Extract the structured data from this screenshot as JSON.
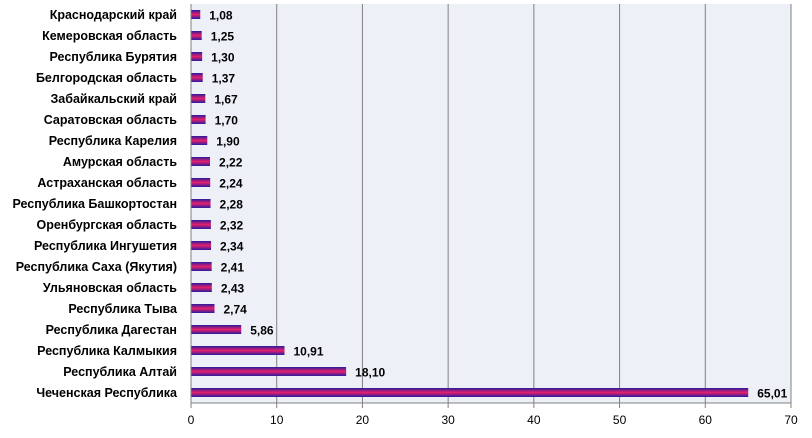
{
  "chart_data": {
    "type": "bar",
    "orientation": "horizontal",
    "title": "",
    "xlabel": "",
    "ylabel": "",
    "xlim": [
      0,
      70
    ],
    "x_ticks": [
      0,
      10,
      20,
      30,
      40,
      50,
      60,
      70
    ],
    "grid": "vertical",
    "legend": "none",
    "categories": [
      "Краснодарский край",
      "Кемеровская область",
      "Республика Бурятия",
      "Белгородская область",
      "Забайкальский край",
      "Саратовская область",
      "Республика Карелия",
      "Амурская область",
      "Астраханская область",
      "Республика Башкортостан",
      "Оренбургская область",
      "Республика Ингушетия",
      "Республика Саха (Якутия)",
      "Ульяновская область",
      "Республика Тыва",
      "Республика Дагестан",
      "Республика Калмыкия",
      "Республика Алтай",
      "Чеченская Республика"
    ],
    "values": [
      1.08,
      1.25,
      1.3,
      1.37,
      1.67,
      1.7,
      1.9,
      2.22,
      2.24,
      2.28,
      2.32,
      2.34,
      2.41,
      2.43,
      2.74,
      5.86,
      10.91,
      18.1,
      65.01
    ],
    "value_labels": [
      "1,08",
      "1,25",
      "1,30",
      "1,37",
      "1,67",
      "1,70",
      "1,90",
      "2,22",
      "2,24",
      "2,28",
      "2,32",
      "2,34",
      "2,41",
      "2,43",
      "2,74",
      "5,86",
      "10,91",
      "18,10",
      "65,01"
    ],
    "colors": {
      "plot_background": "#eef0f8",
      "gridline": "#808080",
      "bar_top": "#2a1aa0",
      "bar_middle": "#e8206a",
      "bar_bottom": "#2a1aa0",
      "axis": "#808080"
    }
  }
}
